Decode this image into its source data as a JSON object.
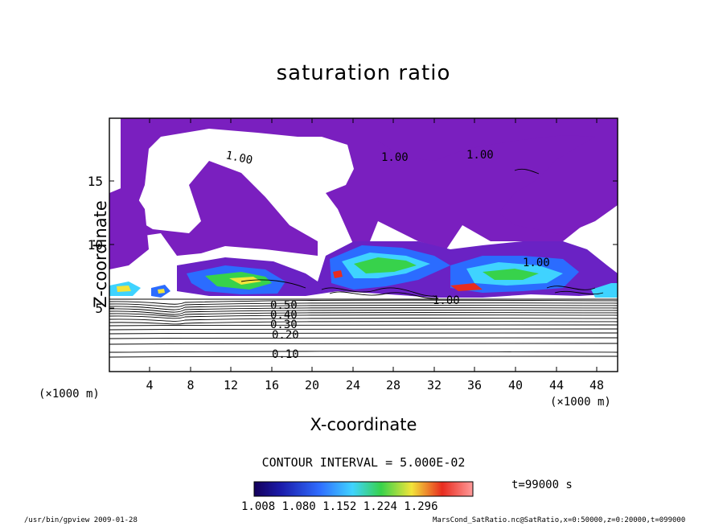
{
  "chart_data": {
    "type": "heatmap",
    "title": "saturation ratio",
    "xlabel": "X-coordinate",
    "ylabel": "Z-coordinate",
    "x_unit_label": "(×1000 m)",
    "x_ticks": [
      "4",
      "8",
      "12",
      "16",
      "20",
      "24",
      "28",
      "32",
      "36",
      "40",
      "44",
      "48"
    ],
    "y_ticks": [
      "5",
      "10",
      "15"
    ],
    "xlim": [
      0,
      50
    ],
    "ylim": [
      0,
      20
    ],
    "contour_interval_label": "CONTOUR INTERVAL = 5.000E-02",
    "time_label": "t=99000 s",
    "colorbar_ticks": [
      "1.008",
      "1.080",
      "1.152",
      "1.224",
      "1.296"
    ],
    "contour_labels": [
      "1.00",
      "1.00",
      "1.00",
      "1.00",
      "1.00",
      "0.50",
      "0.40",
      "0.30",
      "0.20",
      "0.10"
    ],
    "footer_left": "/usr/bin/gpview  2009-01-28",
    "footer_right": "MarsCond_SatRatio.nc@SatRatio,x=0:50000,z=0:20000,t=099000",
    "colors": {
      "cloud": "#7a1fbf",
      "blue": "#2b6cff",
      "cyan": "#3fd3ff",
      "green": "#37d24b",
      "yellow": "#f2e43a",
      "red": "#e82c1f"
    }
  }
}
